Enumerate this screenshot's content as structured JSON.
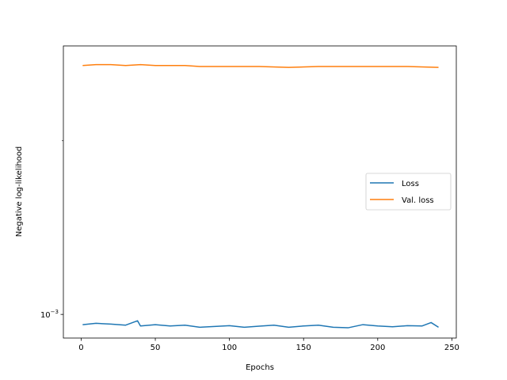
{
  "chart_data": {
    "type": "line",
    "xlabel": "Epochs",
    "ylabel": "Negative log-likelihood",
    "xlim": [
      -12,
      253
    ],
    "ylim": [
      0.00091,
      0.00292
    ],
    "yscale": "log",
    "xticks": [
      0,
      50,
      100,
      150,
      200,
      250
    ],
    "xtick_labels": [
      "0",
      "50",
      "100",
      "150",
      "200",
      "250"
    ],
    "yticks": [
      0.001
    ],
    "ytick_label_base": "10",
    "ytick_label_exp": "−3",
    "grid": false,
    "legend_position": "center-right",
    "series": [
      {
        "name": "Loss",
        "color": "#1f77b4",
        "x": [
          1,
          10,
          20,
          30,
          38,
          40,
          50,
          60,
          70,
          80,
          90,
          100,
          110,
          120,
          130,
          140,
          150,
          160,
          170,
          180,
          190,
          200,
          210,
          220,
          230,
          236,
          241
        ],
        "y": [
          0.00096,
          0.000965,
          0.000962,
          0.000958,
          0.000975,
          0.000955,
          0.00096,
          0.000955,
          0.000958,
          0.00095,
          0.000953,
          0.000956,
          0.00095,
          0.000954,
          0.000958,
          0.00095,
          0.000955,
          0.000958,
          0.00095,
          0.000948,
          0.00096,
          0.000955,
          0.000952,
          0.000956,
          0.000955,
          0.000968,
          0.00095
        ]
      },
      {
        "name": "Val. loss",
        "color": "#ff7f0e",
        "x": [
          1,
          10,
          20,
          30,
          40,
          50,
          60,
          70,
          80,
          100,
          120,
          140,
          160,
          180,
          200,
          220,
          241
        ],
        "y": [
          0.0027,
          0.00271,
          0.00271,
          0.0027,
          0.00271,
          0.0027,
          0.0027,
          0.0027,
          0.00269,
          0.00269,
          0.00269,
          0.00268,
          0.00269,
          0.00269,
          0.00269,
          0.00269,
          0.00268
        ]
      }
    ]
  }
}
